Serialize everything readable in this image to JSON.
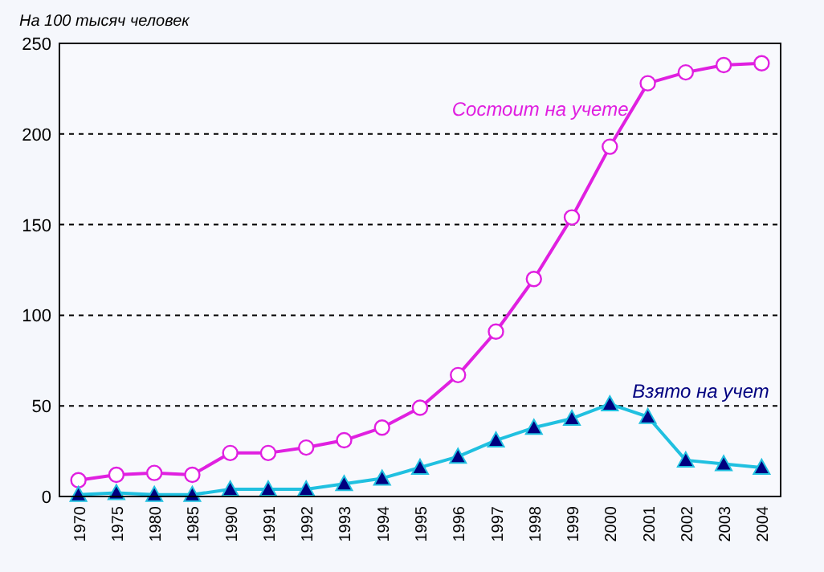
{
  "chart_data": {
    "type": "line",
    "ylabel": "На 100 тысяч человек",
    "categories": [
      "1970",
      "1975",
      "1980",
      "1985",
      "1990",
      "1991",
      "1992",
      "1993",
      "1994",
      "1995",
      "1996",
      "1997",
      "1998",
      "1999",
      "2000",
      "2001",
      "2002",
      "2003",
      "2004"
    ],
    "series": [
      {
        "name": "Состоит на учете",
        "color": "#e020e0",
        "marker": "circle",
        "values": [
          9,
          12,
          13,
          12,
          24,
          24,
          27,
          31,
          38,
          49,
          67,
          91,
          120,
          154,
          193,
          228,
          234,
          238,
          239
        ]
      },
      {
        "name": "Взято на учет",
        "color": "#20c0e0",
        "marker": "triangle",
        "values": [
          1,
          2,
          1,
          1,
          4,
          4,
          4,
          7,
          10,
          16,
          22,
          31,
          38,
          43,
          51,
          44,
          20,
          18,
          16
        ]
      }
    ],
    "ylim": [
      0,
      250
    ],
    "yticks": [
      0,
      50,
      100,
      150,
      200,
      250
    ],
    "grid": "y",
    "line_style": "solid"
  }
}
